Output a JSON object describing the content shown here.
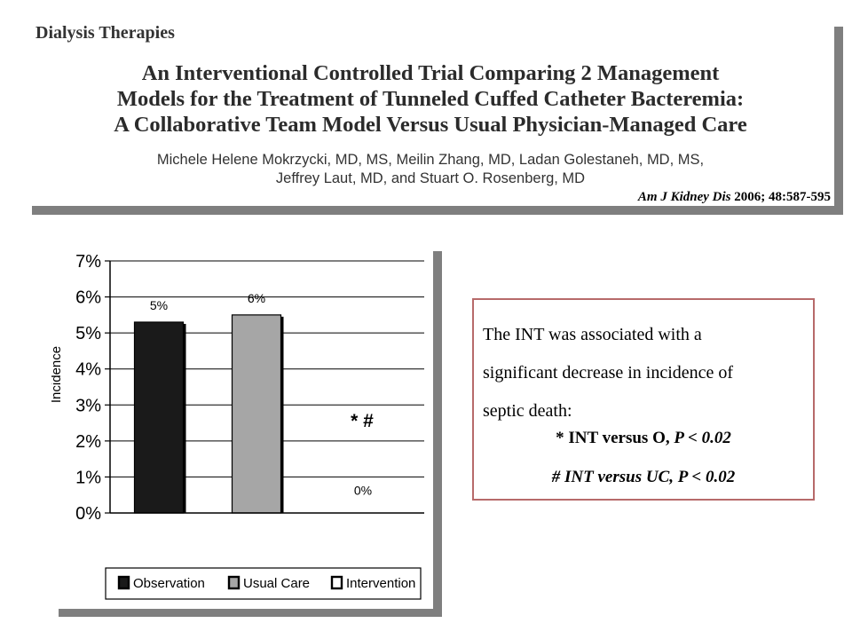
{
  "header": {
    "section": "Dialysis Therapies",
    "title_lines": [
      "An Interventional Controlled Trial Comparing 2 Management",
      "Models for the Treatment of Tunneled Cuffed Catheter Bacteremia:",
      "A Collaborative Team Model Versus Usual Physician-Managed Care"
    ],
    "author_lines": [
      "Michele Helene Mokrzycki, MD, MS, Meilin Zhang, MD, Ladan Golestaneh, MD, MS,",
      "Jeffrey Laut, MD, and Stuart O. Rosenberg, MD"
    ],
    "citation_journal": "Am J Kidney Dis",
    "citation_rest": " 2006; 48:587-595"
  },
  "chart_data": {
    "type": "bar",
    "categories": [
      "Observation",
      "Usual Care",
      "Intervention"
    ],
    "values": [
      5.3,
      5.5,
      0
    ],
    "data_labels": [
      "5%",
      "6%",
      "0%"
    ],
    "colors": [
      "#1a1a1a",
      "#a6a6a6",
      "#ffffff"
    ],
    "ylabel": "Incidence",
    "ylim": [
      0,
      7
    ],
    "yticks": [
      "0%",
      "1%",
      "2%",
      "3%",
      "4%",
      "5%",
      "6%",
      "7%"
    ],
    "grid": true,
    "annotation": "* #",
    "legend": {
      "position": "bottom",
      "entries": [
        "Observation",
        "Usual Care",
        "Intervention"
      ]
    }
  },
  "note": {
    "lines": [
      "The INT was associated with a",
      "significant decrease in incidence of",
      "septic death:"
    ],
    "stat1_prefix": "* INT versus O, ",
    "stat1_p": "P < 0.02",
    "stat2": "# INT versus UC, P < 0.02"
  }
}
